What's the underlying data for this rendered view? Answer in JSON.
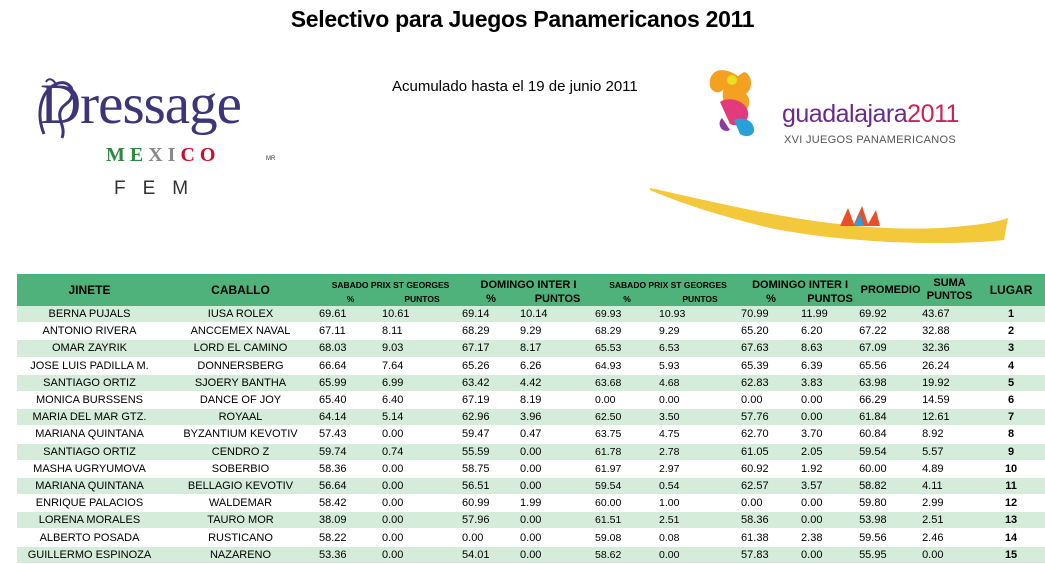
{
  "page": {
    "title": "Selectivo para Juegos Panamericanos 2011",
    "subtitle": "Acumulado hasta el 19 de junio 2011"
  },
  "logos": {
    "dressage": {
      "word": "Dressage",
      "mexico": "MEXICO",
      "mr": "MR",
      "fem": "FEM"
    },
    "guadalajara": {
      "name": "guadalajara",
      "year": "2011",
      "tagline": "XVI JUEGOS PANAMERICANOS"
    }
  },
  "colors": {
    "header_green": "#4fb27a",
    "row_green": "#d4ecd9",
    "dressage_purple": "#3d3577"
  },
  "table": {
    "headers": {
      "jinete": "JINETE",
      "caballo": "CABALLO",
      "sat_prix": "SABADO PRIX ST GEORGES",
      "sun_inter1": "DOMINGO INTER I",
      "sat_prix2": "SABADO PRIX ST GEORGES",
      "sun_inter2": "DOMINGO INTER I",
      "pct": "%",
      "puntos": "PUNTOS",
      "promedio": "PROMEDIO",
      "suma": "SUMA",
      "suma2": "PUNTOS",
      "lugar": "LUGAR"
    },
    "rows": [
      [
        "BERNA PUJALS",
        "IUSA ROLEX",
        "69.61",
        "10.61",
        "69.14",
        "10.14",
        "69.93",
        "10.93",
        "70.99",
        "11.99",
        "69.92",
        "43.67",
        "1"
      ],
      [
        "ANTONIO RIVERA",
        "ANCCEMEX NAVAL",
        "67.11",
        "8.11",
        "68.29",
        "9.29",
        "68.29",
        "9.29",
        "65.20",
        "6.20",
        "67.22",
        "32.88",
        "2"
      ],
      [
        "OMAR ZAYRIK",
        "LORD EL CAMINO",
        "68.03",
        "9.03",
        "67.17",
        "8.17",
        "65.53",
        "6.53",
        "67.63",
        "8.63",
        "67.09",
        "32.36",
        "3"
      ],
      [
        "JOSE LUIS PADILLA M.",
        "DONNERSBERG",
        "66.64",
        "7.64",
        "65.26",
        "6.26",
        "64.93",
        "5.93",
        "65.39",
        "6.39",
        "65.56",
        "26.24",
        "4"
      ],
      [
        "SANTIAGO ORTIZ",
        "SJOERY BANTHA",
        "65.99",
        "6.99",
        "63.42",
        "4.42",
        "63.68",
        "4.68",
        "62.83",
        "3.83",
        "63.98",
        "19.92",
        "5"
      ],
      [
        "MONICA BURSSENS",
        "DANCE OF JOY",
        "65.40",
        "6.40",
        "67.19",
        "8.19",
        "0.00",
        "0.00",
        "0.00",
        "0.00",
        "66.29",
        "14.59",
        "6"
      ],
      [
        "MARIA DEL MAR GTZ.",
        "ROYAAL",
        "64.14",
        "5.14",
        "62.96",
        "3.96",
        "62.50",
        "3.50",
        "57.76",
        "0.00",
        "61.84",
        "12.61",
        "7"
      ],
      [
        "MARIANA QUINTANA",
        "BYZANTIUM KEVOTIV",
        "57.43",
        "0.00",
        "59.47",
        "0.47",
        "63.75",
        "4.75",
        "62.70",
        "3.70",
        "60.84",
        "8.92",
        "8"
      ],
      [
        "SANTIAGO ORTIZ",
        "CENDRO Z",
        "59.74",
        "0.74",
        "55.59",
        "0.00",
        "61.78",
        "2.78",
        "61.05",
        "2.05",
        "59.54",
        "5.57",
        "9"
      ],
      [
        "MASHA UGRYUMOVA",
        "SOBERBIO",
        "58.36",
        "0.00",
        "58.75",
        "0.00",
        "61.97",
        "2.97",
        "60.92",
        "1.92",
        "60.00",
        "4.89",
        "10"
      ],
      [
        "MARIANA QUINTANA",
        "BELLAGIO KEVOTIV",
        "56.64",
        "0.00",
        "56.51",
        "0.00",
        "59.54",
        "0.54",
        "62.57",
        "3.57",
        "58.82",
        "4.11",
        "11"
      ],
      [
        "ENRIQUE PALACIOS",
        "WALDEMAR",
        "58.42",
        "0.00",
        "60.99",
        "1.99",
        "60.00",
        "1.00",
        "0.00",
        "0.00",
        "59.80",
        "2.99",
        "12"
      ],
      [
        "LORENA MORALES",
        "TAURO MOR",
        "38.09",
        "0.00",
        "57.96",
        "0.00",
        "61.51",
        "2.51",
        "58.36",
        "0.00",
        "53.98",
        "2.51",
        "13"
      ],
      [
        "ALBERTO POSADA",
        "RUSTICANO",
        "58.22",
        "0.00",
        "0.00",
        "0.00",
        "59.08",
        "0.08",
        "61.38",
        "2.38",
        "59.56",
        "2.46",
        "14"
      ],
      [
        "GUILLERMO  ESPINOZA",
        "NAZARENO",
        "53.36",
        "0.00",
        "54.01",
        "0.00",
        "58.62",
        "0.00",
        "57.83",
        "0.00",
        "55.95",
        "0.00",
        "15"
      ]
    ]
  }
}
